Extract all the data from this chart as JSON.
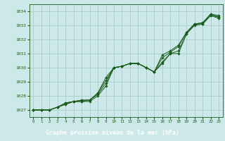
{
  "title": "Graphe pression niveau de la mer (hPa)",
  "bg_color": "#cce8e8",
  "plot_bg_color": "#cce8e8",
  "grid_color": "#aacccc",
  "line_color": "#1a5c1a",
  "label_bg_color": "#1a5c1a",
  "label_text_color": "#ffffff",
  "xlim": [
    -0.5,
    23.5
  ],
  "ylim": [
    1026.5,
    1034.5
  ],
  "yticks": [
    1027,
    1028,
    1029,
    1030,
    1031,
    1032,
    1033,
    1034
  ],
  "xticks": [
    0,
    1,
    2,
    3,
    4,
    5,
    6,
    7,
    8,
    9,
    10,
    11,
    12,
    13,
    14,
    15,
    16,
    17,
    18,
    19,
    20,
    21,
    22,
    23
  ],
  "series": [
    [
      1027.0,
      1027.0,
      1027.0,
      1027.2,
      1027.5,
      1027.6,
      1027.7,
      1027.7,
      1028.2,
      1029.3,
      1030.0,
      1030.1,
      1030.3,
      1030.3,
      1030.0,
      1029.7,
      1030.9,
      1031.2,
      1031.6,
      1032.5,
      1033.1,
      1033.2,
      1033.8,
      1033.7
    ],
    [
      1027.0,
      1027.0,
      1027.0,
      1027.2,
      1027.5,
      1027.6,
      1027.7,
      1027.7,
      1028.2,
      1029.1,
      1030.0,
      1030.1,
      1030.3,
      1030.3,
      1030.0,
      1029.7,
      1030.7,
      1031.1,
      1031.5,
      1032.5,
      1033.1,
      1033.1,
      1033.8,
      1033.6
    ],
    [
      1027.0,
      1027.0,
      1027.0,
      1027.2,
      1027.4,
      1027.6,
      1027.6,
      1027.7,
      1028.1,
      1028.9,
      1030.0,
      1030.1,
      1030.3,
      1030.3,
      1030.0,
      1029.7,
      1030.4,
      1031.0,
      1031.2,
      1032.4,
      1033.1,
      1033.1,
      1033.7,
      1033.6
    ],
    [
      1027.0,
      1027.0,
      1027.0,
      1027.2,
      1027.4,
      1027.6,
      1027.6,
      1027.6,
      1028.0,
      1028.7,
      1030.0,
      1030.1,
      1030.3,
      1030.3,
      1030.0,
      1029.7,
      1030.3,
      1031.0,
      1031.0,
      1032.4,
      1033.0,
      1033.1,
      1033.7,
      1033.5
    ]
  ]
}
